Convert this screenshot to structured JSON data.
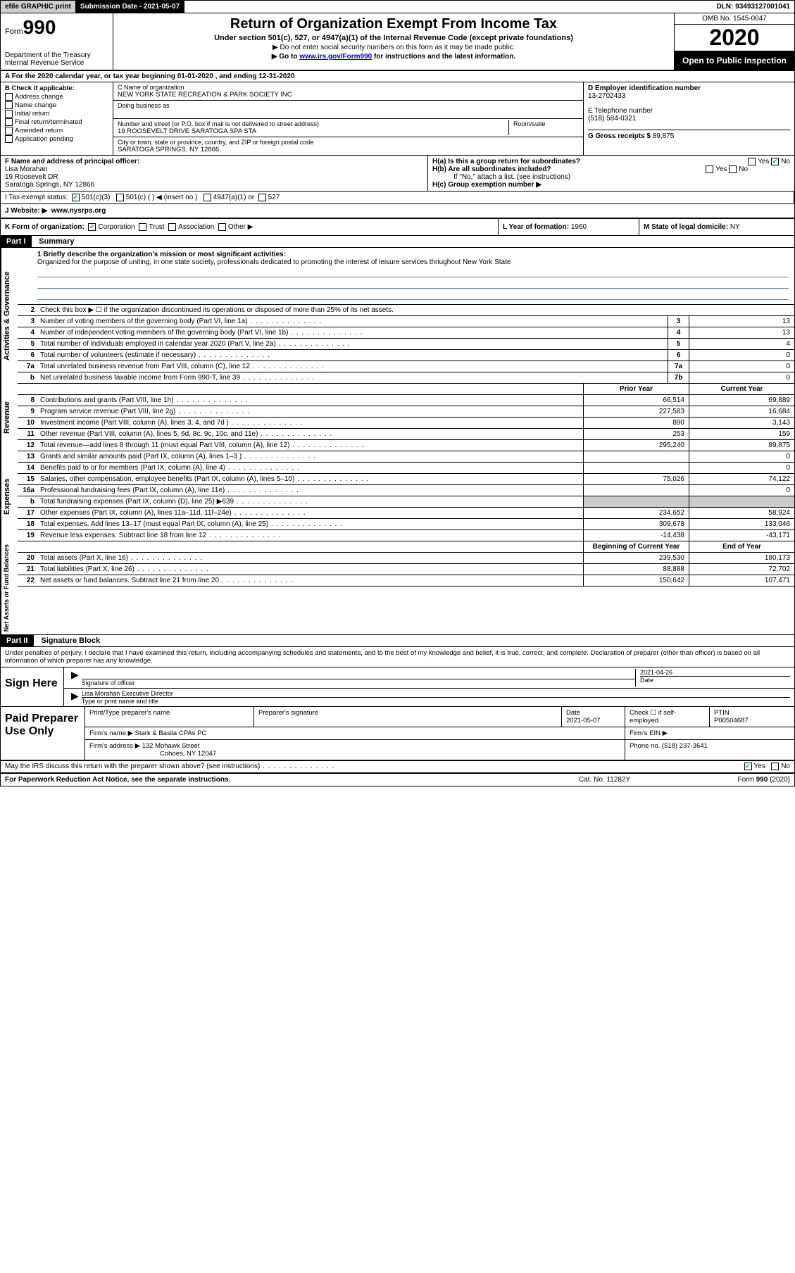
{
  "topbar": {
    "efile": "efile GRAPHIC print",
    "submission": "Submission Date - 2021-05-07",
    "dln": "DLN: 93493127001041"
  },
  "header": {
    "form_prefix": "Form",
    "form_num": "990",
    "dept": "Department of the Treasury\nInternal Revenue Service",
    "title": "Return of Organization Exempt From Income Tax",
    "subtitle": "Under section 501(c), 527, or 4947(a)(1) of the Internal Revenue Code (except private foundations)",
    "note1": "▶ Do not enter social security numbers on this form as it may be made public.",
    "note2_pre": "▶ Go to ",
    "note2_link": "www.irs.gov/Form990",
    "note2_post": " for instructions and the latest information.",
    "omb": "OMB No. 1545-0047",
    "year": "2020",
    "open": "Open to Public Inspection"
  },
  "period": "A For the 2020 calendar year, or tax year beginning 01-01-2020   , and ending 12-31-2020",
  "entity": {
    "b_label": "B Check if applicable:",
    "b_opts": [
      "Address change",
      "Name change",
      "Initial return",
      "Final return/terminated",
      "Amended return",
      "Application pending"
    ],
    "c_lbl": "C Name of organization",
    "c_val": "NEW YORK STATE RECREATION & PARK SOCIETY INC",
    "dba_lbl": "Doing business as",
    "addr_lbl": "Number and street (or P.O. box if mail is not delivered to street address)",
    "addr_val": "19 ROOSEVELT DRIVE SARATOGA SPA STA",
    "room_lbl": "Room/suite",
    "city_lbl": "City or town, state or province, country, and ZIP or foreign postal code",
    "city_val": "SARATOGA SPRINGS, NY  12866",
    "d_lbl": "D Employer identification number",
    "d_val": "13-2702433",
    "e_lbl": "E Telephone number",
    "e_val": "(518) 584-0321",
    "g_lbl": "G Gross receipts $ ",
    "g_val": "89,875"
  },
  "fh": {
    "f_lbl": "F  Name and address of principal officer:",
    "f_name": "Lisa Morahan",
    "f_addr1": "19 Roosevelt DR",
    "f_addr2": "Saratoga Springs, NY  12866",
    "ha": "H(a)  Is this a group return for subordinates?",
    "hb": "H(b)  Are all subordinates included?",
    "hb_note": "If \"No,\" attach a list. (see instructions)",
    "hc": "H(c)  Group exemption number ▶",
    "yes": "Yes",
    "no": "No"
  },
  "i": {
    "lbl": "I  Tax-exempt status:",
    "o1": "501(c)(3)",
    "o2": "501(c) (  ) ◀ (insert no.)",
    "o3": "4947(a)(1) or",
    "o4": "527"
  },
  "j": {
    "lbl": "J  Website: ▶",
    "val": "www.nysrps.org"
  },
  "k": {
    "lbl": "K Form of organization:",
    "o1": "Corporation",
    "o2": "Trust",
    "o3": "Association",
    "o4": "Other ▶"
  },
  "l": {
    "lbl": "L Year of formation: ",
    "val": "1960"
  },
  "m": {
    "lbl": "M State of legal domicile: ",
    "val": "NY"
  },
  "part1": {
    "hdr": "Part I",
    "title": "Summary"
  },
  "mission": {
    "q": "1  Briefly describe the organization's mission or most significant activities:",
    "a": "Organized for the purpose of uniting, in one state society, professionals dedicated to promoting the interest of leisure services thriughout New York State"
  },
  "gov_lines": [
    {
      "n": "2",
      "d": "Check this box ▶ ☐  if the organization discontinued its operations or disposed of more than 25% of its net assets."
    },
    {
      "n": "3",
      "d": "Number of voting members of the governing body (Part VI, line 1a)",
      "b": "3",
      "v": "13"
    },
    {
      "n": "4",
      "d": "Number of independent voting members of the governing body (Part VI, line 1b)",
      "b": "4",
      "v": "13"
    },
    {
      "n": "5",
      "d": "Total number of individuals employed in calendar year 2020 (Part V, line 2a)",
      "b": "5",
      "v": "4"
    },
    {
      "n": "6",
      "d": "Total number of volunteers (estimate if necessary)",
      "b": "6",
      "v": "0"
    },
    {
      "n": "7a",
      "d": "Total unrelated business revenue from Part VIII, column (C), line 12",
      "b": "7a",
      "v": "0"
    },
    {
      "n": "b",
      "d": "Net unrelated business taxable income from Form 990-T, line 39",
      "b": "7b",
      "v": "0"
    }
  ],
  "py_hdr": "Prior Year",
  "cy_hdr": "Current Year",
  "rev_lines": [
    {
      "n": "8",
      "d": "Contributions and grants (Part VIII, line 1h)",
      "py": "66,514",
      "cy": "69,889"
    },
    {
      "n": "9",
      "d": "Program service revenue (Part VIII, line 2g)",
      "py": "227,583",
      "cy": "16,684"
    },
    {
      "n": "10",
      "d": "Investment income (Part VIII, column (A), lines 3, 4, and 7d )",
      "py": "890",
      "cy": "3,143"
    },
    {
      "n": "11",
      "d": "Other revenue (Part VIII, column (A), lines 5, 6d, 8c, 9c, 10c, and 11e)",
      "py": "253",
      "cy": "159"
    },
    {
      "n": "12",
      "d": "Total revenue—add lines 8 through 11 (must equal Part VIII, column (A), line 12)",
      "py": "295,240",
      "cy": "89,875"
    }
  ],
  "exp_lines": [
    {
      "n": "13",
      "d": "Grants and similar amounts paid (Part IX, column (A), lines 1–3 )",
      "py": "",
      "cy": "0"
    },
    {
      "n": "14",
      "d": "Benefits paid to or for members (Part IX, column (A), line 4)",
      "py": "",
      "cy": "0"
    },
    {
      "n": "15",
      "d": "Salaries, other compensation, employee benefits (Part IX, column (A), lines 5–10)",
      "py": "75,026",
      "cy": "74,122"
    },
    {
      "n": "16a",
      "d": "Professional fundraising fees (Part IX, column (A), line 11e)",
      "py": "",
      "cy": "0"
    },
    {
      "n": "b",
      "d": "Total fundraising expenses (Part IX, column (D), line 25) ▶639",
      "py": "SHADE",
      "cy": "SHADE"
    },
    {
      "n": "17",
      "d": "Other expenses (Part IX, column (A), lines 11a–11d, 11f–24e)",
      "py": "234,652",
      "cy": "58,924"
    },
    {
      "n": "18",
      "d": "Total expenses. Add lines 13–17 (must equal Part IX, column (A), line 25)",
      "py": "309,678",
      "cy": "133,046"
    },
    {
      "n": "19",
      "d": "Revenue less expenses. Subtract line 18 from line 12",
      "py": "-14,438",
      "cy": "-43,171"
    }
  ],
  "na_hdr1": "Beginning of Current Year",
  "na_hdr2": "End of Year",
  "na_lines": [
    {
      "n": "20",
      "d": "Total assets (Part X, line 16)",
      "py": "239,530",
      "cy": "180,173"
    },
    {
      "n": "21",
      "d": "Total liabilities (Part X, line 26)",
      "py": "88,888",
      "cy": "72,702"
    },
    {
      "n": "22",
      "d": "Net assets or fund balances. Subtract line 21 from line 20",
      "py": "150,642",
      "cy": "107,471"
    }
  ],
  "vlabels": {
    "gov": "Activities & Governance",
    "rev": "Revenue",
    "exp": "Expenses",
    "na": "Net Assets or Fund Balances"
  },
  "part2": {
    "hdr": "Part II",
    "title": "Signature Block"
  },
  "decl": "Under penalties of perjury, I declare that I have examined this return, including accompanying schedules and statements, and to the best of my knowledge and belief, it is true, correct, and complete. Declaration of preparer (other than officer) is based on all information of which preparer has any knowledge.",
  "sign": {
    "here": "Sign Here",
    "sig_lbl": "Signature of officer",
    "date_lbl": "Date",
    "date_val": "2021-04-26",
    "name": "Lisa Morahan  Executive Director",
    "name_lbl": "Type or print name and title"
  },
  "prep": {
    "here": "Paid Preparer Use Only",
    "c1": "Print/Type preparer's name",
    "c2": "Preparer's signature",
    "c3": "Date",
    "c3v": "2021-05-07",
    "c4": "Check ☐ if self-employed",
    "c5": "PTIN",
    "c5v": "P00504687",
    "firm_lbl": "Firm's name    ▶",
    "firm_val": "Stark & Basila CPAs PC",
    "ein_lbl": "Firm's EIN ▶",
    "addr_lbl": "Firm's address ▶",
    "addr_val1": "132 Mohawk Street",
    "addr_val2": "Cohoes, NY  12047",
    "phone_lbl": "Phone no. ",
    "phone_val": "(518) 237-3641"
  },
  "discuss": "May the IRS discuss this return with the preparer shown above? (see instructions)",
  "footer": {
    "l": "For Paperwork Reduction Act Notice, see the separate instructions.",
    "c": "Cat. No. 11282Y",
    "r": "Form 990 (2020)"
  },
  "colors": {
    "link": "#0000cc",
    "rule": "#5a7fa0",
    "shade": "#cccccc"
  }
}
